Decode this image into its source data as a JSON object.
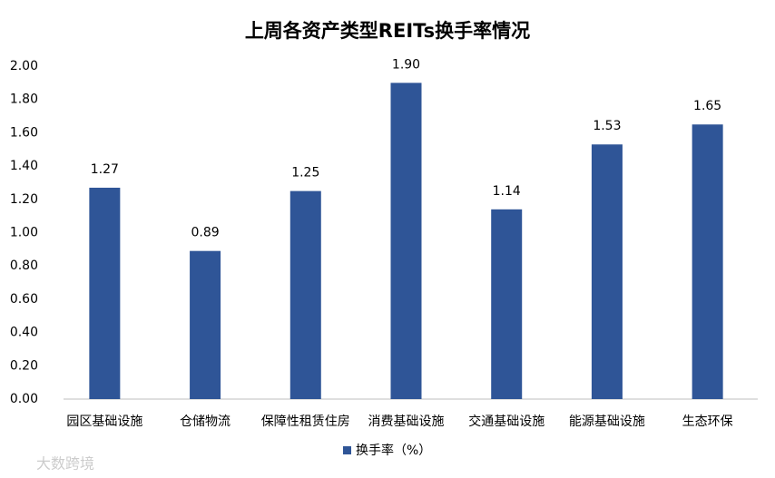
{
  "chart_data": {
    "type": "bar",
    "title": "上周各资产类型REITs换手率情况",
    "categories": [
      "园区基础设施",
      "仓储物流",
      "保障性租赁住房",
      "消费基础设施",
      "交通基础设施",
      "能源基础设施",
      "生态环保"
    ],
    "series": [
      {
        "name": "换手率（%）",
        "color": "#2f5597",
        "values": [
          1.27,
          0.89,
          1.25,
          1.9,
          1.14,
          1.53,
          1.65
        ],
        "value_labels": [
          "1.27",
          "0.89",
          "1.25",
          "1.90",
          "1.14",
          "1.53",
          "1.65"
        ]
      }
    ],
    "ylim": [
      0,
      2
    ],
    "yticks": [
      {
        "value": 0,
        "label": "0.00"
      },
      {
        "value": 0.2,
        "label": "0.20"
      },
      {
        "value": 0.4,
        "label": "0.40"
      },
      {
        "value": 0.6,
        "label": "0.60"
      },
      {
        "value": 0.8,
        "label": "0.80"
      },
      {
        "value": 1,
        "label": "1.00"
      },
      {
        "value": 1.2,
        "label": "1.20"
      },
      {
        "value": 1.4,
        "label": "1.40"
      },
      {
        "value": 1.6,
        "label": "1.60"
      },
      {
        "value": 1.8,
        "label": "1.80"
      },
      {
        "value": 2,
        "label": "2.00"
      }
    ],
    "grid": false,
    "legend": "bottom",
    "watermark": "大数跨境"
  }
}
